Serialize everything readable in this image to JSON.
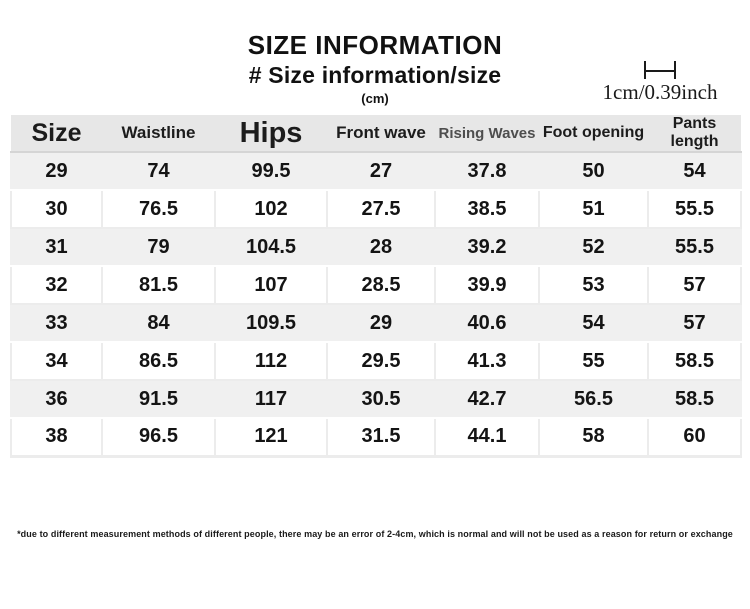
{
  "header": {
    "title": "SIZE INFORMATION",
    "subtitle": "# Size information/size",
    "unit": "(cm)",
    "scale_label": "1cm/0.39inch"
  },
  "footnote": "*due to different measurement methods of different people, there may be an error of 2-4cm, which is normal and will not be used as a reason for return or exchange",
  "colors": {
    "header_row_bg": "#e7e7e7",
    "zebra_row_bg": "#f0f0f0",
    "cell_border": "#ececec",
    "text": "#111111",
    "muted_header_text": "#4e4e4e"
  },
  "icons": {
    "cm_scale_icon": "measurement-scale-bracket"
  },
  "chart_data": {
    "type": "table",
    "title": "SIZE INFORMATION",
    "subtitle": "# Size information/size",
    "unit": "cm",
    "scale_note": "1cm/0.39inch",
    "columns": [
      "Size",
      "Waistline",
      "Hips",
      "Front wave",
      "Rising Waves",
      "Foot opening",
      "Pants length"
    ],
    "rows": [
      [
        "29",
        "74",
        "99.5",
        "27",
        "37.8",
        "50",
        "54"
      ],
      [
        "30",
        "76.5",
        "102",
        "27.5",
        "38.5",
        "51",
        "55.5"
      ],
      [
        "31",
        "79",
        "104.5",
        "28",
        "39.2",
        "52",
        "55.5"
      ],
      [
        "32",
        "81.5",
        "107",
        "28.5",
        "39.9",
        "53",
        "57"
      ],
      [
        "33",
        "84",
        "109.5",
        "29",
        "40.6",
        "54",
        "57"
      ],
      [
        "34",
        "86.5",
        "112",
        "29.5",
        "41.3",
        "55",
        "58.5"
      ],
      [
        "36",
        "91.5",
        "117",
        "30.5",
        "42.7",
        "56.5",
        "58.5"
      ],
      [
        "38",
        "96.5",
        "121",
        "31.5",
        "44.1",
        "58",
        "60"
      ]
    ]
  }
}
